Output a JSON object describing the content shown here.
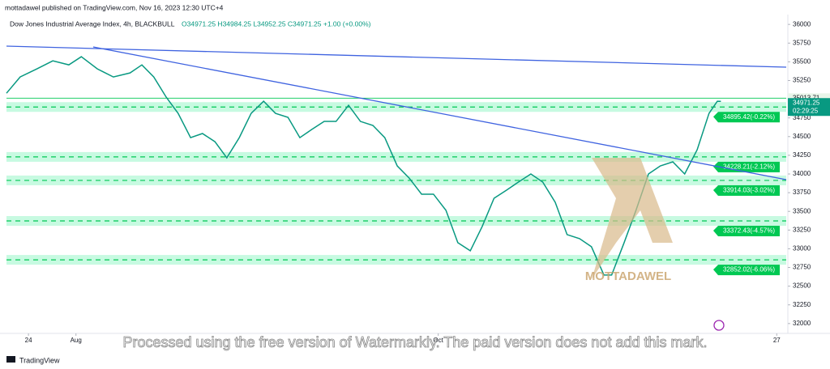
{
  "header": "mottadawel published on TradingView.com, Nov 16, 2023 12:30 UTC+4",
  "footer": "TradingView",
  "watermark": "Processed using the free version of Watermarkly. The paid version does not add this mark.",
  "logo": "MOTTADAWEL",
  "chart_data": {
    "type": "line",
    "title": "Dow Jones Industrial Average Index, 4h, BLACKBULL",
    "subtitle": "O34971.25 H34984.25 L34952.25 C34971.25 +1.00 (+0.00%)",
    "x": [
      -3.7,
      -1.4,
      1.4,
      4.1,
      6.8,
      8.9,
      11.6,
      14.3,
      17.1,
      19.1,
      21.1,
      23.2,
      25.2,
      27.3,
      29.3,
      31.4,
      33.4,
      35.5,
      37.5,
      39.6,
      41.6,
      43.7,
      45.7,
      47.7,
      49.8,
      51.8,
      53.9,
      55.9,
      58.0,
      60.0,
      62.1,
      64.1,
      66.2,
      68.2,
      70.3,
      72.3,
      74.4,
      76.4,
      78.4,
      80.5,
      82.5,
      84.6,
      86.6,
      88.7,
      90.7,
      92.8,
      94.8,
      96.9,
      98.2,
      100.3,
      102.3,
      104.4,
      106.4,
      108.5,
      110.5,
      112.6,
      114.6,
      116.0,
      116.6
    ],
    "series": [
      {
        "name": "Close",
        "color": "#089981",
        "values": [
          35080,
          35297,
          35405,
          35513,
          35459,
          35568,
          35405,
          35297,
          35351,
          35459,
          35297,
          35027,
          34811,
          34486,
          34541,
          34432,
          34216,
          34486,
          34811,
          34973,
          34811,
          34757,
          34486,
          34595,
          34703,
          34703,
          34919,
          34703,
          34649,
          34486,
          34108,
          33946,
          33730,
          33730,
          33514,
          33081,
          32973,
          33297,
          33676,
          33784,
          33892,
          34000,
          33892,
          33622,
          33189,
          33135,
          33027,
          32649,
          32649,
          33081,
          33514,
          34000,
          34108,
          34162,
          34000,
          34324,
          34811,
          34973,
          34971.25
        ]
      }
    ],
    "xlim": [
      -3.7,
      127.6
    ],
    "xticks": [
      {
        "value": 0,
        "label": "24"
      },
      {
        "value": 8,
        "label": "Aug"
      },
      {
        "value": 69,
        "label": "Oct"
      },
      {
        "value": 126,
        "label": "27"
      }
    ],
    "ylim": [
      31890,
      36110
    ],
    "yticks": [
      32000,
      32250,
      32500,
      32750,
      33000,
      33250,
      33500,
      33750,
      34000,
      34250,
      34500,
      34750,
      35000,
      35250,
      35500,
      35750,
      36000
    ],
    "levels": [
      {
        "value": 34895.42,
        "label": "34895.42(-0.22%)"
      },
      {
        "value": 34228.21,
        "label": "34228.21(-2.12%)"
      },
      {
        "value": 33914.03,
        "label": "33914.03(-3.02%)"
      },
      {
        "value": 33372.43,
        "label": "33372.43(-4.57%)"
      },
      {
        "value": 32852.02,
        "label": "32852.02(-6.06%)"
      }
    ],
    "level_color": "#00c853",
    "high_line": 35013.71,
    "last_price": 34971.25,
    "countdown": "02:29:25"
  }
}
